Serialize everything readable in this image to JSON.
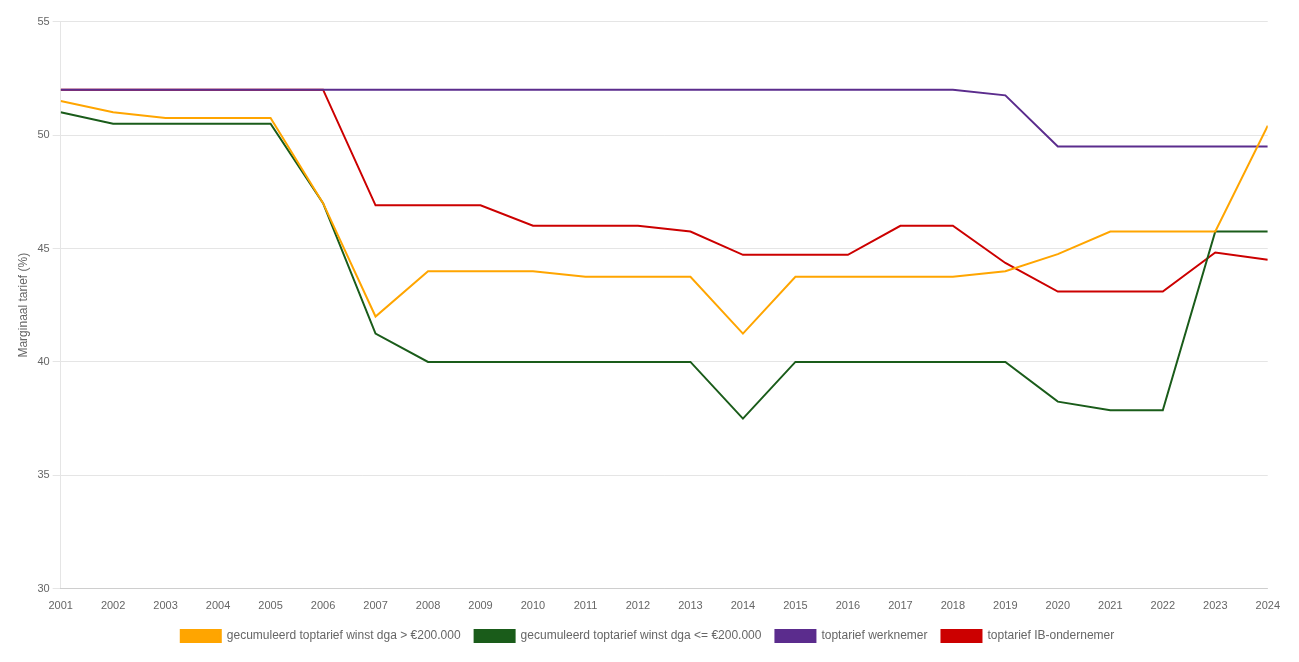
{
  "chart_data": {
    "type": "line",
    "y_label": "Marginaal tarief (%)",
    "x": [
      2001,
      2002,
      2003,
      2004,
      2005,
      2006,
      2007,
      2008,
      2009,
      2010,
      2011,
      2012,
      2013,
      2014,
      2015,
      2016,
      2017,
      2018,
      2019,
      2020,
      2021,
      2022,
      2023,
      2024
    ],
    "xlim": [
      2001,
      2024
    ],
    "xticks": [
      2001,
      2002,
      2003,
      2004,
      2005,
      2006,
      2007,
      2008,
      2009,
      2010,
      2011,
      2012,
      2013,
      2014,
      2015,
      2016,
      2017,
      2018,
      2019,
      2020,
      2021,
      2022,
      2023,
      2024
    ],
    "ylim": [
      30,
      55
    ],
    "yticks": [
      30,
      35,
      40,
      45,
      50,
      55
    ],
    "grid": "y",
    "legend": "bottom",
    "series": [
      {
        "name": "gecumuleerd toptarief winst dga > €200.000",
        "color": "#FFA500",
        "values": [
          51.5,
          51.0,
          50.75,
          50.75,
          50.75,
          47.0,
          42.0,
          44.0,
          44.0,
          44.0,
          43.75,
          43.75,
          43.75,
          41.25,
          43.75,
          43.75,
          43.75,
          43.75,
          44.0,
          44.75,
          45.75,
          45.75,
          45.75,
          50.41
        ]
      },
      {
        "name": "gecumuleerd toptarief winst dga <= €200.000",
        "color": "#1A5C1A",
        "values": [
          51.0,
          50.5,
          50.5,
          50.5,
          50.5,
          47.0,
          41.25,
          40.0,
          40.0,
          40.0,
          40.0,
          40.0,
          40.0,
          37.5,
          40.0,
          40.0,
          40.0,
          40.0,
          40.0,
          38.25,
          37.87,
          37.87,
          45.75,
          45.75
        ]
      },
      {
        "name": "toptarief werknemer",
        "color": "#5B2C8D",
        "values": [
          52.0,
          52.0,
          52.0,
          52.0,
          52.0,
          52.0,
          52.0,
          52.0,
          52.0,
          52.0,
          52.0,
          52.0,
          52.0,
          52.0,
          52.0,
          52.0,
          52.0,
          52.0,
          51.75,
          49.5,
          49.5,
          49.5,
          49.5,
          49.5
        ]
      },
      {
        "name": "toptarief IB-ondernemer",
        "color": "#CC0000",
        "values": [
          52.0,
          52.0,
          52.0,
          52.0,
          52.0,
          52.0,
          46.9,
          46.9,
          46.9,
          46.0,
          46.0,
          46.0,
          45.75,
          44.72,
          44.72,
          44.72,
          46.0,
          46.0,
          44.36,
          43.1,
          43.1,
          43.1,
          44.82,
          44.5
        ]
      }
    ]
  }
}
